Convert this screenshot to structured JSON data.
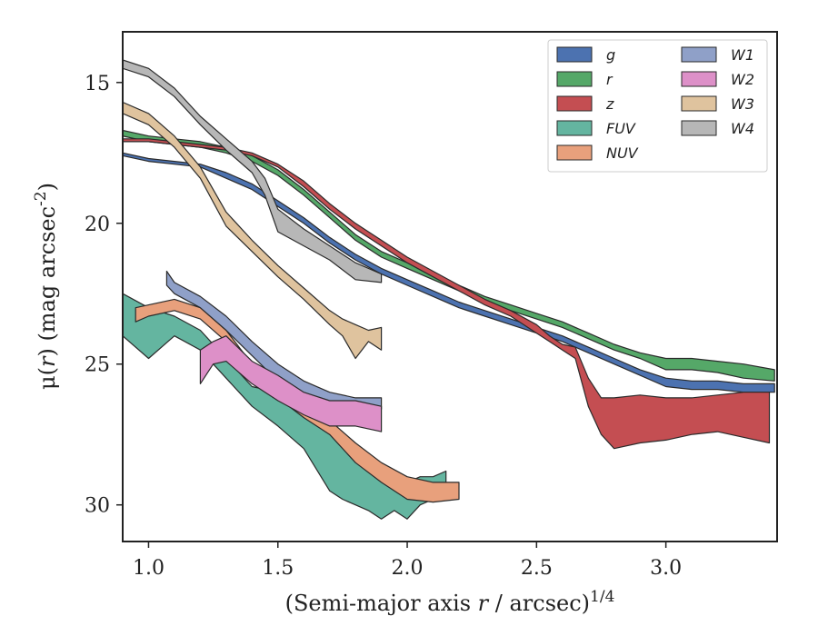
{
  "chart_data": {
    "type": "area",
    "xlabel": "(Semi-major axis r / arcsec)^{1/4}",
    "ylabel": "μ(r) (mag arcsec^{-2})",
    "xlim": [
      0.9,
      3.43
    ],
    "ylim": [
      31.3,
      13.2
    ],
    "y_inverted": true,
    "xticks": [
      "1.0",
      "1.5",
      "2.0",
      "2.5",
      "3.0"
    ],
    "yticks": [
      "15",
      "20",
      "25",
      "30"
    ],
    "grid": false,
    "legend_position": "top-right",
    "legend_columns": 2,
    "series": [
      {
        "name": "g",
        "color": "#4c72b0",
        "x": [
          0.9,
          1.0,
          1.1,
          1.2,
          1.3,
          1.4,
          1.5,
          1.6,
          1.7,
          1.8,
          1.9,
          2.0,
          2.1,
          2.2,
          2.3,
          2.4,
          2.5,
          2.6,
          2.7,
          2.8,
          2.9,
          3.0,
          3.1,
          3.2,
          3.3,
          3.42
        ],
        "y_bright": [
          17.5,
          17.7,
          17.8,
          17.9,
          18.2,
          18.6,
          19.2,
          19.8,
          20.5,
          21.1,
          21.6,
          22.0,
          22.4,
          22.8,
          23.1,
          23.4,
          23.7,
          24.0,
          24.4,
          24.8,
          25.2,
          25.5,
          25.6,
          25.6,
          25.7,
          25.7
        ],
        "y_faint": [
          17.6,
          17.8,
          17.9,
          18.0,
          18.4,
          18.8,
          19.4,
          20.0,
          20.7,
          21.3,
          21.8,
          22.2,
          22.6,
          23.0,
          23.3,
          23.6,
          23.9,
          24.2,
          24.6,
          25.0,
          25.4,
          25.8,
          25.9,
          25.9,
          26.0,
          26.0
        ]
      },
      {
        "name": "r",
        "color": "#55a868",
        "x": [
          0.9,
          1.0,
          1.1,
          1.2,
          1.3,
          1.4,
          1.5,
          1.6,
          1.7,
          1.8,
          1.9,
          2.0,
          2.1,
          2.2,
          2.3,
          2.4,
          2.5,
          2.6,
          2.7,
          2.8,
          2.9,
          3.0,
          3.1,
          3.2,
          3.3,
          3.42
        ],
        "y_bright": [
          16.7,
          16.9,
          17.0,
          17.1,
          17.3,
          17.6,
          18.1,
          18.8,
          19.6,
          20.4,
          21.0,
          21.4,
          21.8,
          22.2,
          22.6,
          22.9,
          23.2,
          23.5,
          23.9,
          24.3,
          24.6,
          24.8,
          24.8,
          24.9,
          25.0,
          25.2
        ],
        "y_faint": [
          16.9,
          17.1,
          17.2,
          17.3,
          17.5,
          17.8,
          18.3,
          19.0,
          19.8,
          20.6,
          21.2,
          21.6,
          22.0,
          22.4,
          22.8,
          23.1,
          23.4,
          23.7,
          24.1,
          24.5,
          24.8,
          25.2,
          25.2,
          25.3,
          25.5,
          25.6
        ]
      },
      {
        "name": "z",
        "color": "#c44e52",
        "x": [
          0.9,
          1.0,
          1.1,
          1.2,
          1.3,
          1.4,
          1.5,
          1.6,
          1.7,
          1.8,
          1.9,
          2.0,
          2.1,
          2.2,
          2.3,
          2.4,
          2.5,
          2.55,
          2.6,
          2.65,
          2.7,
          2.75,
          2.8,
          2.9,
          3.0,
          3.1,
          3.2,
          3.3,
          3.4
        ],
        "y_bright": [
          17.0,
          17.0,
          17.1,
          17.2,
          17.3,
          17.5,
          17.9,
          18.5,
          19.3,
          20.0,
          20.6,
          21.2,
          21.7,
          22.2,
          22.7,
          23.1,
          23.6,
          24.0,
          24.3,
          24.4,
          25.5,
          26.2,
          26.2,
          26.1,
          26.2,
          26.2,
          26.1,
          26.0,
          26.0
        ],
        "y_faint": [
          17.1,
          17.1,
          17.2,
          17.3,
          17.4,
          17.6,
          18.0,
          18.7,
          19.5,
          20.2,
          20.8,
          21.4,
          21.9,
          22.4,
          22.9,
          23.3,
          23.9,
          24.2,
          24.5,
          24.8,
          26.5,
          27.5,
          28.0,
          27.8,
          27.7,
          27.5,
          27.4,
          27.6,
          27.8
        ]
      },
      {
        "name": "FUV",
        "color": "#64b5a0",
        "x": [
          0.9,
          1.0,
          1.1,
          1.2,
          1.3,
          1.4,
          1.5,
          1.6,
          1.7,
          1.75,
          1.8,
          1.85,
          1.9,
          1.95,
          2.0,
          2.05,
          2.1,
          2.15
        ],
        "y_bright": [
          22.5,
          23.0,
          23.3,
          23.8,
          24.8,
          25.8,
          26.0,
          26.8,
          27.5,
          27.8,
          28.0,
          28.5,
          28.8,
          29.0,
          29.2,
          29.0,
          29.0,
          28.8
        ],
        "y_faint": [
          24.0,
          24.8,
          24.0,
          24.5,
          25.5,
          26.5,
          27.2,
          28.0,
          29.5,
          29.8,
          30.0,
          30.2,
          30.5,
          30.2,
          30.5,
          30.0,
          29.8,
          29.5
        ]
      },
      {
        "name": "NUV",
        "color": "#e8a07c",
        "x": [
          0.95,
          1.0,
          1.1,
          1.2,
          1.3,
          1.4,
          1.5,
          1.6,
          1.7,
          1.8,
          1.9,
          2.0,
          2.1,
          2.2
        ],
        "y_bright": [
          23.0,
          22.9,
          22.7,
          23.0,
          23.8,
          25.0,
          25.8,
          26.5,
          27.0,
          27.8,
          28.5,
          29.0,
          29.2,
          29.2
        ],
        "y_faint": [
          23.5,
          23.3,
          23.1,
          23.4,
          24.2,
          25.4,
          26.2,
          26.9,
          27.5,
          28.5,
          29.2,
          29.8,
          29.9,
          29.8
        ]
      },
      {
        "name": "W1",
        "color": "#8fa0c8",
        "x": [
          1.07,
          1.1,
          1.2,
          1.3,
          1.4,
          1.5,
          1.6,
          1.7,
          1.8,
          1.9
        ],
        "y_bright": [
          21.7,
          22.1,
          22.6,
          23.3,
          24.2,
          25.0,
          25.6,
          26.0,
          26.2,
          26.2
        ],
        "y_faint": [
          22.2,
          22.5,
          23.0,
          23.8,
          24.7,
          25.6,
          26.3,
          26.6,
          26.7,
          26.6
        ]
      },
      {
        "name": "W2",
        "color": "#dd90c8",
        "x": [
          1.2,
          1.25,
          1.3,
          1.4,
          1.5,
          1.6,
          1.7,
          1.8,
          1.9
        ],
        "y_bright": [
          24.5,
          24.2,
          24.0,
          24.9,
          25.4,
          26.0,
          26.3,
          26.3,
          26.5
        ],
        "y_faint": [
          25.7,
          25.0,
          24.9,
          25.7,
          26.3,
          26.8,
          27.2,
          27.2,
          27.4
        ]
      },
      {
        "name": "W3",
        "color": "#dfc39e",
        "x": [
          0.9,
          1.0,
          1.1,
          1.2,
          1.3,
          1.4,
          1.5,
          1.6,
          1.7,
          1.75,
          1.8,
          1.85,
          1.9
        ],
        "y_bright": [
          15.7,
          16.1,
          16.9,
          18.0,
          19.6,
          20.6,
          21.5,
          22.3,
          23.1,
          23.4,
          23.6,
          23.8,
          23.7
        ],
        "y_faint": [
          16.1,
          16.5,
          17.3,
          18.4,
          20.1,
          21.0,
          21.9,
          22.7,
          23.6,
          24.0,
          24.8,
          24.2,
          24.5
        ]
      },
      {
        "name": "W4",
        "color": "#b7b7b7",
        "x": [
          0.9,
          1.0,
          1.1,
          1.2,
          1.3,
          1.4,
          1.45,
          1.5,
          1.6,
          1.7,
          1.8,
          1.9
        ],
        "y_bright": [
          14.2,
          14.5,
          15.2,
          16.2,
          17.0,
          17.8,
          18.4,
          19.5,
          20.2,
          20.8,
          21.4,
          21.8
        ],
        "y_faint": [
          14.5,
          14.8,
          15.5,
          16.5,
          17.4,
          18.2,
          19.0,
          20.3,
          20.8,
          21.3,
          22.0,
          22.1
        ]
      }
    ]
  }
}
